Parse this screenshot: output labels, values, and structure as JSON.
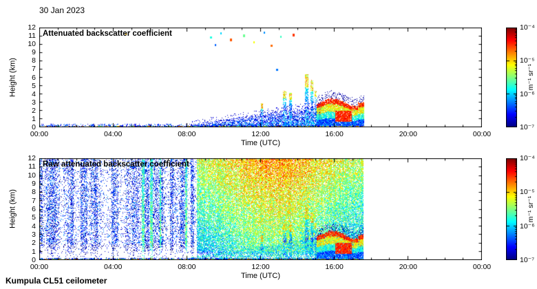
{
  "page": {
    "date_label": "30 Jan 2023",
    "footer": "Kumpula CL51 ceilometer"
  },
  "chart_data": [
    {
      "type": "heatmap",
      "title": "Attenuated backscatter coefficient",
      "xlabel": "Time (UTC)",
      "ylabel": "Height (km)",
      "x_ticks": [
        "00:00",
        "04:00",
        "08:00",
        "12:00",
        "16:00",
        "20:00",
        "00:00"
      ],
      "y_ticks": [
        0,
        1,
        2,
        3,
        4,
        5,
        6,
        7,
        8,
        9,
        10,
        11,
        12
      ],
      "x_range_hours": [
        0,
        24
      ],
      "y_range_km": [
        0,
        12
      ],
      "grid": false,
      "colorbar": {
        "position": "right",
        "scale": "log",
        "colormap": "jet",
        "min": 1e-07,
        "max": 0.0001,
        "ticks": [
          "10⁻⁴",
          "10⁻⁵",
          "10⁻⁶",
          "10⁻⁷"
        ],
        "units": "m⁻¹ sr⁻¹"
      },
      "features": {
        "data_end_hour": 17.62,
        "surface_aerosol_layer_top_km": 0.25,
        "boundary_layer": {
          "start_hour": 8.2,
          "end_hour": 15.3,
          "base_depth_km": 0.35,
          "growth_km_per_hour": 0.33,
          "max_depth_km": 2.6
        },
        "cloud_plumes": [
          {
            "hour": 12.08,
            "half_width_hour": 0.06,
            "base_km": 1.1,
            "top_km": 2.9
          },
          {
            "hour": 13.3,
            "half_width_hour": 0.09,
            "base_km": 2.0,
            "top_km": 4.4
          },
          {
            "hour": 13.62,
            "half_width_hour": 0.07,
            "base_km": 2.0,
            "top_km": 4.1
          },
          {
            "hour": 14.5,
            "half_width_hour": 0.1,
            "base_km": 2.2,
            "top_km": 6.4
          },
          {
            "hour": 14.78,
            "half_width_hour": 0.09,
            "base_km": 2.2,
            "top_km": 5.7
          },
          {
            "hour": 15.0,
            "half_width_hour": 0.06,
            "base_km": 2.4,
            "top_km": 4.4
          }
        ],
        "precipitation_band": {
          "start_hour": 15.05,
          "end_hour": 17.62,
          "top_km_edge": 2.2,
          "top_km_max": 3.3,
          "red_core_hours": [
            16.05,
            16.95
          ],
          "red_core_km": [
            0.7,
            2.0
          ]
        },
        "high_specks": [
          [
            4.7,
            11.2
          ],
          [
            9.3,
            10.8
          ],
          [
            9.85,
            11.3
          ],
          [
            10.4,
            10.5
          ],
          [
            11.1,
            11.0
          ],
          [
            11.65,
            10.2
          ],
          [
            12.2,
            11.4
          ],
          [
            12.6,
            9.8
          ],
          [
            13.1,
            10.9
          ],
          [
            13.8,
            11.1
          ],
          [
            9.55,
            9.9
          ],
          [
            12.9,
            6.9
          ]
        ]
      }
    },
    {
      "type": "heatmap",
      "title": "Raw attenuated backscatter coefficient",
      "xlabel": "Time (UTC)",
      "ylabel": "Height (km)",
      "x_ticks": [
        "00:00",
        "04:00",
        "08:00",
        "12:00",
        "16:00",
        "20:00",
        "00:00"
      ],
      "y_ticks": [
        0,
        1,
        2,
        3,
        4,
        5,
        6,
        7,
        8,
        9,
        10,
        11,
        12
      ],
      "x_range_hours": [
        0,
        24
      ],
      "y_range_km": [
        0,
        12
      ],
      "grid": false,
      "colorbar": {
        "position": "right",
        "scale": "log",
        "colormap": "jet",
        "min": 1e-07,
        "max": 0.0001,
        "ticks": [
          "10⁻⁴",
          "10⁻⁵",
          "10⁻⁶",
          "10⁻⁷"
        ],
        "units": "m⁻¹ sr⁻¹"
      },
      "features": {
        "data_end_hour": 17.58,
        "noise": {
          "night_density": 0.42,
          "day_density": 0.8,
          "day_start_hour": 8.55,
          "solar_peak_hour": 12.8
        },
        "white_band": {
          "bottom_km": 0.25,
          "top_km_night": 1.7,
          "top_km_day": 0.95
        },
        "green_stripes_hours": [
          [
            5.55,
            5.72
          ],
          [
            6.02,
            6.14
          ],
          [
            6.55,
            6.62
          ],
          [
            7.9,
            8.02
          ]
        ]
      }
    }
  ]
}
